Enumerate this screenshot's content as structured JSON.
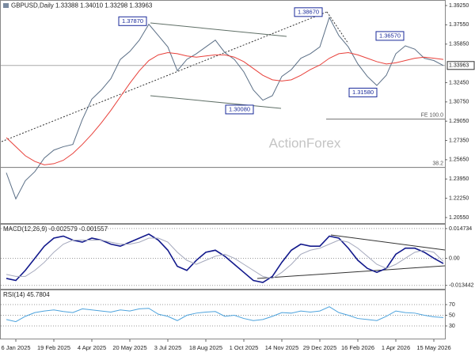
{
  "chart_data": [
    {
      "type": "line",
      "title": "GBPUSD,Daily  1.33388 1.34010 1.33298 1.33963",
      "watermark": "ActionForex",
      "categories": [
        null,
        "6 Jan 2025",
        null,
        null,
        null,
        "19 Feb 2025",
        null,
        null,
        null,
        "4 Apr 2025",
        null,
        null,
        null,
        "20 May 2025",
        null,
        null,
        null,
        "3 Jul 2025",
        null,
        null,
        null,
        "18 Aug 2025",
        null,
        null,
        null,
        "1 Oct 2025",
        null,
        null,
        null,
        "14 Nov 2025",
        null,
        null,
        null,
        "29 Dec 2025",
        null,
        null,
        null,
        "16 Feb 2026",
        null,
        null,
        null,
        "1 Apr 2026",
        null,
        null,
        null,
        "15 May 2026",
        null
      ],
      "series": [
        {
          "color": "#5b6f86",
          "values": [
            1.245,
            1.222,
            1.238,
            1.246,
            1.258,
            1.265,
            1.268,
            1.27,
            1.292,
            1.31,
            1.318,
            1.328,
            1.345,
            1.352,
            1.362,
            1.376,
            1.366,
            1.356,
            1.335,
            1.345,
            1.35,
            1.356,
            1.362,
            1.351,
            1.345,
            1.334,
            1.318,
            1.309,
            1.313,
            1.33,
            1.336,
            1.346,
            1.35,
            1.356,
            1.382,
            1.366,
            1.356,
            1.341,
            1.33,
            1.322,
            1.331,
            1.35,
            1.357,
            1.354,
            1.346,
            1.344,
            1.3396
          ]
        },
        {
          "color": "#e8403a",
          "values": [
            1.276,
            1.268,
            1.26,
            1.255,
            1.252,
            1.253,
            1.256,
            1.262,
            1.27,
            1.279,
            1.289,
            1.3,
            1.312,
            1.324,
            1.335,
            1.344,
            1.349,
            1.351,
            1.35,
            1.348,
            1.347,
            1.348,
            1.349,
            1.349,
            1.347,
            1.343,
            1.337,
            1.331,
            1.327,
            1.326,
            1.327,
            1.331,
            1.336,
            1.34,
            1.346,
            1.35,
            1.351,
            1.349,
            1.346,
            1.343,
            1.341,
            1.342,
            1.344,
            1.346,
            1.347,
            1.346,
            1.345
          ]
        }
      ],
      "ylim": [
        1.2006,
        1.3967
      ],
      "yticks": [
        {
          "value": 1.3925,
          "label": "1.39250"
        },
        {
          "value": 1.3755,
          "label": "1.37550"
        },
        {
          "value": 1.3585,
          "label": "1.35850"
        },
        {
          "value": 1.3245,
          "label": "1.32450"
        },
        {
          "value": 1.3075,
          "label": "1.30750"
        },
        {
          "value": 1.2905,
          "label": "1.29050"
        },
        {
          "value": 1.2735,
          "label": "1.27350"
        },
        {
          "value": 1.2565,
          "label": "1.25650"
        },
        {
          "value": 1.2395,
          "label": "1.23950"
        },
        {
          "value": 1.2225,
          "label": "1.22250"
        },
        {
          "value": 1.2055,
          "label": "1.20550"
        }
      ],
      "last_price": 1.33963,
      "price_labels": [
        {
          "value": 1.3787,
          "label": "1.37870"
        },
        {
          "value": 1.3867,
          "label": "1.38670"
        },
        {
          "value": 1.3657,
          "label": "1.36570"
        },
        {
          "value": 1.3158,
          "label": "1.31580"
        },
        {
          "value": 1.3008,
          "label": "1.30080"
        }
      ],
      "levels": [
        {
          "name": "FE 100.0",
          "value": 1.2924
        },
        {
          "name": "38.2",
          "value": 1.2497
        }
      ],
      "grid": false
    },
    {
      "type": "line",
      "title": "MACD(12,26,9) -0.002579 -0.001557",
      "series": [
        {
          "color": "#12198c",
          "values": [
            -0.01,
            -0.011,
            -0.006,
            0.0,
            0.006,
            0.01,
            0.011,
            0.009,
            0.008,
            0.01,
            0.009,
            0.007,
            0.006,
            0.008,
            0.01,
            0.012,
            0.009,
            0.004,
            -0.004,
            -0.006,
            -0.001,
            0.003,
            0.004,
            0.001,
            -0.003,
            -0.007,
            -0.011,
            -0.012,
            -0.009,
            -0.002,
            0.004,
            0.007,
            0.006,
            0.006,
            0.011,
            0.01,
            0.005,
            -0.001,
            -0.005,
            -0.007,
            -0.005,
            0.002,
            0.005,
            0.005,
            0.003,
            0.0,
            -0.002579
          ]
        },
        {
          "color": "#a4a8bc",
          "values": [
            -0.008,
            -0.009,
            -0.009,
            -0.006,
            -0.002,
            0.003,
            0.007,
            0.009,
            0.009,
            0.009,
            0.009,
            0.008,
            0.007,
            0.007,
            0.008,
            0.01,
            0.01,
            0.008,
            0.003,
            -0.001,
            -0.003,
            -0.001,
            0.001,
            0.002,
            0.0,
            -0.003,
            -0.006,
            -0.009,
            -0.01,
            -0.007,
            -0.003,
            0.002,
            0.004,
            0.005,
            0.007,
            0.009,
            0.008,
            0.005,
            0.001,
            -0.003,
            -0.005,
            -0.003,
            0.0,
            0.003,
            0.004,
            0.003,
            -0.001557
          ]
        }
      ],
      "ylim": [
        -0.01512,
        0.01667
      ],
      "yticks": [
        0.014734,
        {
          "value": 0,
          "label": "0.00"
        },
        -0.013442
      ],
      "grid": true
    },
    {
      "type": "line",
      "title": "RSI(14) 45.7804",
      "series": [
        {
          "color": "#4da3dd",
          "values": [
            42,
            38,
            48,
            55,
            58,
            60,
            57,
            55,
            62,
            60,
            58,
            56,
            60,
            58,
            62,
            63,
            52,
            48,
            40,
            50,
            54,
            56,
            57,
            48,
            50,
            44,
            40,
            42,
            48,
            55,
            54,
            58,
            56,
            58,
            66,
            55,
            50,
            44,
            42,
            40,
            48,
            58,
            55,
            54,
            50,
            47,
            45.7804
          ]
        }
      ],
      "ylim": [
        6.3,
        96.7
      ],
      "yticks": [
        70,
        50,
        30
      ],
      "grid": true
    }
  ]
}
